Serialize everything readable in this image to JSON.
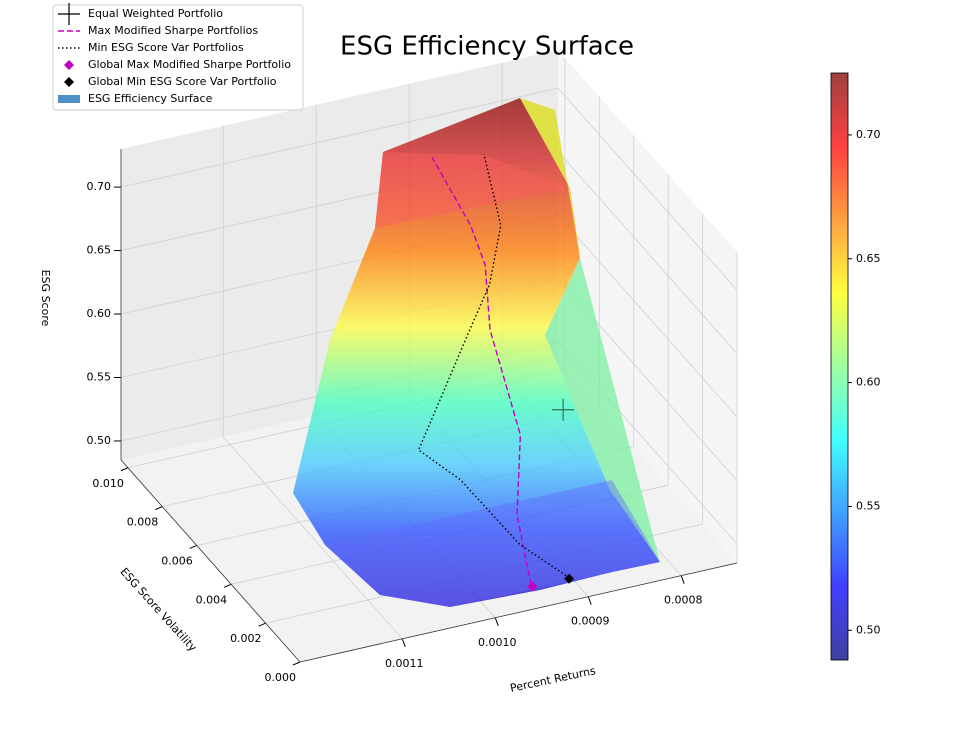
{
  "chart_data": {
    "type": "surface3d",
    "title": "ESG Efficiency Surface",
    "xlabel": "Percent Returns",
    "ylabel": "ESG Score Volatility",
    "zlabel": "ESG Score",
    "xlim": [
      0.00074,
      0.00121
    ],
    "ylim": [
      0,
      0.0104
    ],
    "zlim": [
      0.485,
      0.73
    ],
    "xticks": [
      0.0008,
      0.0009,
      0.001,
      0.0011
    ],
    "xtick_labels": [
      "0.0008",
      "0.0009",
      "0.0010",
      "0.0011"
    ],
    "yticks": [
      {
        "value": 0,
        "label": "0.000"
      },
      {
        "value": 0.002,
        "label": "0.002"
      },
      {
        "value": 0.004,
        "label": "0.004"
      },
      {
        "value": 0.006,
        "label": "0.006"
      },
      {
        "value": 0.008,
        "label": "0.008"
      },
      {
        "value": 0.01,
        "label": "0.010"
      }
    ],
    "zticks": [
      {
        "value": 0.5,
        "label": "0.50"
      },
      {
        "value": 0.55,
        "label": "0.55"
      },
      {
        "value": 0.6,
        "label": "0.60"
      },
      {
        "value": 0.65,
        "label": "0.65"
      },
      {
        "value": 0.7,
        "label": "0.70"
      }
    ],
    "colormap": "jet",
    "clim": [
      0.488,
      0.725
    ],
    "cticks": [
      {
        "value": 0.5,
        "label": "0.50"
      },
      {
        "value": 0.55,
        "label": "0.55"
      },
      {
        "value": 0.6,
        "label": "0.60"
      },
      {
        "value": 0.65,
        "label": "0.65"
      },
      {
        "value": 0.7,
        "label": "0.70"
      }
    ],
    "legend": "upper left",
    "series": [
      {
        "name": "Equal Weighted Portfolio",
        "color": "#000000",
        "marker": "plus",
        "x": [
          0.00089
        ],
        "y": [
          0.002
        ],
        "z": [
          0.6
        ]
      },
      {
        "name": "Max Modified Sharpe Portfolios",
        "color": "#bf00bf",
        "linestyle": "dashed",
        "x": [
          0.000957,
          0.000944,
          0.000918,
          0.000902,
          0.000885,
          0.000897,
          0.000928
        ],
        "y": [
          0.00025,
          0.00176,
          0.00297,
          0.0056,
          0.0068,
          0.007,
          0.00755
        ],
        "z": [
          0.5,
          0.53,
          0.57,
          0.61,
          0.64,
          0.67,
          0.72
        ]
      },
      {
        "name": "Min ESG Score Var Portfolios",
        "color": "#000000",
        "linestyle": "dotted",
        "x": [
          0.000917,
          0.000945,
          0.000967,
          0.001001,
          0.000962,
          0.00092,
          0.000897,
          0.00087,
          0.000879
        ],
        "y": [
          0.00018,
          0.00153,
          0.0038,
          0.0044,
          0.00526,
          0.0058,
          0.0059,
          0.0067,
          0.0072
        ],
        "z": [
          0.5,
          0.51,
          0.53,
          0.55,
          0.57,
          0.61,
          0.64,
          0.67,
          0.72
        ]
      },
      {
        "name": "Global Max Modified Sharpe Portfolio",
        "color": "#bf00bf",
        "marker": "diamond",
        "x": [
          0.000957
        ],
        "y": [
          0.00016
        ],
        "z": [
          0.5
        ]
      },
      {
        "name": "Global Min ESG Score Var Portfolio",
        "color": "#000000",
        "marker": "diamond",
        "x": [
          0.000918
        ],
        "y": [
          0.00014
        ],
        "z": [
          0.5
        ]
      },
      {
        "name": "ESG Efficiency Surface",
        "color": "#4f8fc8",
        "marker": "surface"
      }
    ]
  }
}
